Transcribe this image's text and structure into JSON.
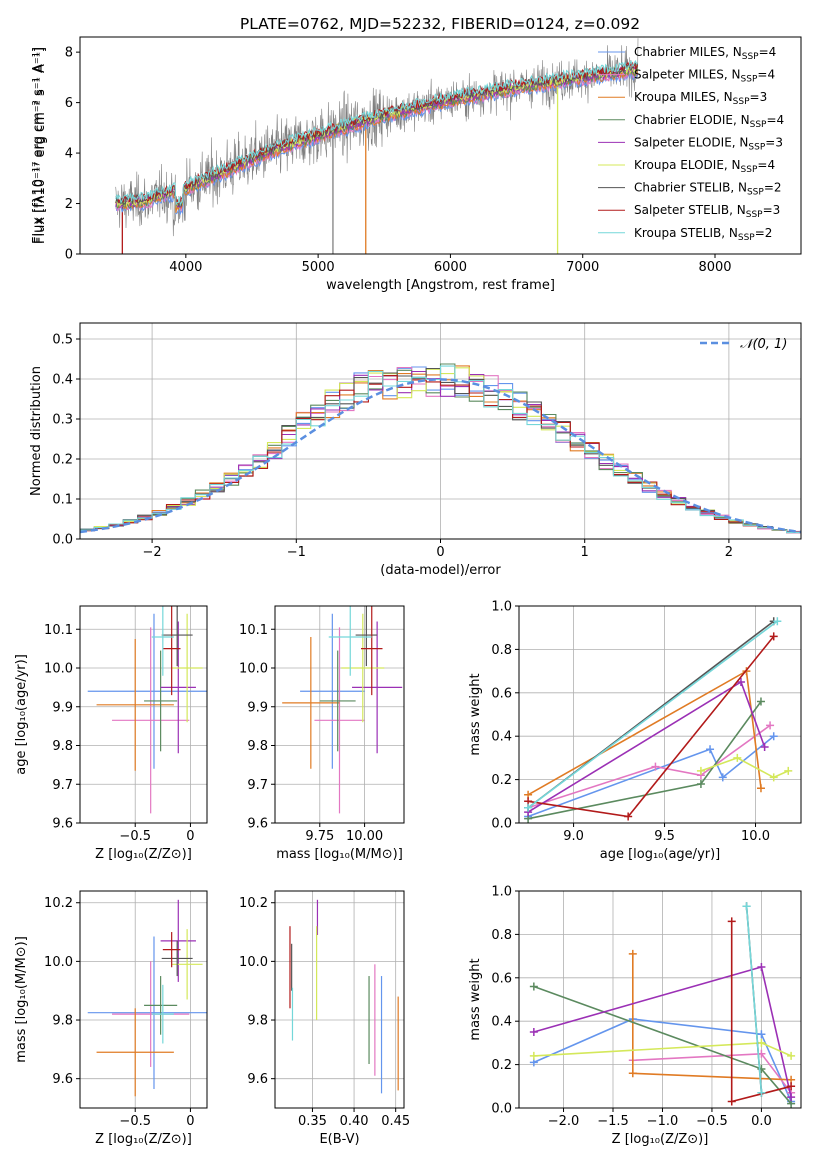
{
  "figure_title": "PLATE=0762, MJD=52232, FIBERID=0124, z=0.092",
  "colors": {
    "Chabrier MILES": "#6495ed",
    "Salpeter MILES": "#e377c2",
    "Kroupa MILES": "#e07b24",
    "Chabrier ELODIE": "#5b8a5f",
    "Salpeter ELODIE": "#9b30b5",
    "Kroupa ELODIE": "#d4e85a",
    "Chabrier STELIB": "#555555",
    "Salpeter STELIB": "#b21a1a",
    "Kroupa STELIB": "#74d7d9",
    "data": "#808080",
    "normal": "#5b8fe0"
  },
  "chart_data": [
    {
      "id": "spectrum",
      "type": "line",
      "title": "PLATE=0762, MJD=52232, FIBERID=0124, z=0.092",
      "xlabel": "wavelength [Angstrom, rest frame]",
      "ylabel": "Flux [fλ10⁻¹⁷ erg cm⁻² s⁻¹ A⁻¹]",
      "xlim": [
        3200,
        8650
      ],
      "ylim": [
        0,
        8.6
      ],
      "xticks": [
        4000,
        5000,
        6000,
        7000,
        8000
      ],
      "yticks": [
        0,
        2,
        4,
        6,
        8
      ],
      "legend_position": "upper right",
      "series": [
        {
          "name": "Chabrier MILES, N_SSP=4",
          "label_main": "Chabrier MILES, N",
          "label_sub": "SSP",
          "label_tail": "=4"
        },
        {
          "name": "Salpeter MILES, N_SSP=4",
          "label_main": "Salpeter MILES, N",
          "label_sub": "SSP",
          "label_tail": "=4"
        },
        {
          "name": "Kroupa MILES, N_SSP=3",
          "label_main": "Kroupa MILES, N",
          "label_sub": "SSP",
          "label_tail": "=3"
        },
        {
          "name": "Chabrier ELODIE, N_SSP=4",
          "label_main": "Chabrier ELODIE, N",
          "label_sub": "SSP",
          "label_tail": "=4"
        },
        {
          "name": "Salpeter ELODIE, N_SSP=3",
          "label_main": "Salpeter ELODIE, N",
          "label_sub": "SSP",
          "label_tail": "=3"
        },
        {
          "name": "Kroupa ELODIE, N_SSP=4",
          "label_main": "Kroupa ELODIE, N",
          "label_sub": "SSP",
          "label_tail": "=4"
        },
        {
          "name": "Chabrier STELIB, N_SSP=2",
          "label_main": "Chabrier STELIB, N",
          "label_sub": "SSP",
          "label_tail": "=2"
        },
        {
          "name": "Salpeter STELIB, N_SSP=3",
          "label_main": "Salpeter STELIB, N",
          "label_sub": "SSP",
          "label_tail": "=3"
        },
        {
          "name": "Kroupa STELIB, N_SSP=2",
          "label_main": "Kroupa STELIB, N",
          "label_sub": "SSP",
          "label_tail": "=2"
        }
      ],
      "continuum": {
        "x": [
          3500,
          3700,
          3800,
          4000,
          4300,
          4600,
          5000,
          5500,
          6000,
          6500,
          7000,
          7400
        ],
        "y": [
          2.0,
          2.1,
          2.3,
          2.6,
          3.3,
          4.0,
          4.7,
          5.5,
          6.1,
          6.6,
          7.0,
          7.3
        ]
      }
    },
    {
      "id": "residuals",
      "type": "line",
      "xlabel": "(data-model)/error",
      "ylabel": "Normed distribution",
      "xlim": [
        -2.5,
        2.5
      ],
      "ylim": [
        0,
        0.54
      ],
      "xticks": [
        -2,
        -1,
        0,
        1,
        2
      ],
      "yticks": [
        0.0,
        0.1,
        0.2,
        0.3,
        0.4,
        0.5
      ],
      "legend_position": "upper right",
      "legend_label": "𝒩(0, 1)",
      "bin_width": 0.1
    },
    {
      "id": "age_vs_Z",
      "type": "scatter",
      "xlabel": "Z [log₁₀(Z/Z⊙)]",
      "ylabel": "age  [log₁₀(age/yr)]",
      "xlim": [
        -1.0,
        0.15
      ],
      "ylim": [
        9.6,
        10.16
      ],
      "xticks": [
        -0.5,
        0.0
      ],
      "yticks": [
        9.6,
        9.7,
        9.8,
        9.9,
        10.0,
        10.1
      ],
      "points": [
        {
          "model": "Chabrier MILES",
          "x": -0.33,
          "xerr": 0.6,
          "y": 9.94,
          "yerr": 0.2
        },
        {
          "model": "Salpeter MILES",
          "x": -0.36,
          "xerr": 0.35,
          "y": 9.865,
          "yerr": 0.24
        },
        {
          "model": "Kroupa MILES",
          "x": -0.5,
          "xerr": 0.35,
          "y": 9.905,
          "yerr": 0.17
        },
        {
          "model": "Chabrier ELODIE",
          "x": -0.27,
          "xerr": 0.15,
          "y": 9.915,
          "yerr": 0.13
        },
        {
          "model": "Salpeter ELODIE",
          "x": -0.11,
          "xerr": 0.16,
          "y": 9.95,
          "yerr": 0.17
        },
        {
          "model": "Kroupa ELODIE",
          "x": -0.03,
          "xerr": 0.14,
          "y": 10.0,
          "yerr": 0.14
        },
        {
          "model": "Chabrier STELIB",
          "x": -0.12,
          "xerr": 0.14,
          "y": 10.085,
          "yerr": 0.08
        },
        {
          "model": "Salpeter STELIB",
          "x": -0.17,
          "xerr": 0.08,
          "y": 10.05,
          "yerr": 0.12
        },
        {
          "model": "Kroupa STELIB",
          "x": -0.25,
          "xerr": 0.1,
          "y": 10.08,
          "yerr": 0.1
        }
      ]
    },
    {
      "id": "age_vs_mass",
      "type": "scatter",
      "xlabel": "mass [log₁₀(M/M⊙)]",
      "ylabel": "",
      "xlim": [
        9.5,
        10.22
      ],
      "ylim": [
        9.6,
        10.16
      ],
      "xticks": [
        9.75,
        10.0
      ],
      "yticks": [
        9.6,
        9.7,
        9.8,
        9.9,
        10.0,
        10.1
      ],
      "points": [
        {
          "model": "Chabrier MILES",
          "x": 9.82,
          "xerr": 0.18,
          "y": 9.94,
          "yerr": 0.2
        },
        {
          "model": "Salpeter MILES",
          "x": 9.86,
          "xerr": 0.14,
          "y": 9.865,
          "yerr": 0.24
        },
        {
          "model": "Kroupa MILES",
          "x": 9.7,
          "xerr": 0.16,
          "y": 9.91,
          "yerr": 0.17
        },
        {
          "model": "Chabrier ELODIE",
          "x": 9.85,
          "xerr": 0.1,
          "y": 9.915,
          "yerr": 0.13
        },
        {
          "model": "Salpeter ELODIE",
          "x": 10.07,
          "xerr": 0.14,
          "y": 9.95,
          "yerr": 0.17
        },
        {
          "model": "Kroupa ELODIE",
          "x": 9.99,
          "xerr": 0.12,
          "y": 10.0,
          "yerr": 0.14
        },
        {
          "model": "Chabrier STELIB",
          "x": 10.01,
          "xerr": 0.06,
          "y": 10.085,
          "yerr": 0.08
        },
        {
          "model": "Salpeter STELIB",
          "x": 10.04,
          "xerr": 0.06,
          "y": 10.05,
          "yerr": 0.12
        },
        {
          "model": "Kroupa STELIB",
          "x": 9.92,
          "xerr": 0.12,
          "y": 10.08,
          "yerr": 0.1
        }
      ]
    },
    {
      "id": "weight_vs_age",
      "type": "line",
      "xlabel": "age  [log₁₀(age/yr)]",
      "ylabel": "mass weight",
      "xlim": [
        8.7,
        10.25
      ],
      "ylim": [
        0,
        1.0
      ],
      "xticks": [
        9.0,
        9.5,
        10.0
      ],
      "yticks": [
        0.0,
        0.2,
        0.4,
        0.6,
        0.8,
        1.0
      ],
      "series": [
        {
          "model": "Chabrier MILES",
          "x": [
            8.75,
            9.75,
            9.82,
            10.1
          ],
          "y": [
            0.03,
            0.34,
            0.21,
            0.4
          ]
        },
        {
          "model": "Salpeter MILES",
          "x": [
            8.75,
            9.45,
            9.7,
            10.08
          ],
          "y": [
            0.07,
            0.26,
            0.22,
            0.45
          ]
        },
        {
          "model": "Kroupa MILES",
          "x": [
            8.75,
            9.95,
            10.03
          ],
          "y": [
            0.13,
            0.7,
            0.16
          ]
        },
        {
          "model": "Chabrier ELODIE",
          "x": [
            8.75,
            9.7,
            10.03
          ],
          "y": [
            0.02,
            0.18,
            0.56
          ]
        },
        {
          "model": "Salpeter ELODIE",
          "x": [
            8.75,
            9.92,
            10.05
          ],
          "y": [
            0.05,
            0.65,
            0.35
          ]
        },
        {
          "model": "Kroupa ELODIE",
          "x": [
            9.7,
            9.9,
            10.1,
            10.18
          ],
          "y": [
            0.24,
            0.3,
            0.21,
            0.24
          ]
        },
        {
          "model": "Chabrier STELIB",
          "x": [
            8.75,
            10.1
          ],
          "y": [
            0.07,
            0.93
          ]
        },
        {
          "model": "Salpeter STELIB",
          "x": [
            8.75,
            9.3,
            10.1
          ],
          "y": [
            0.1,
            0.03,
            0.86
          ]
        },
        {
          "model": "Kroupa STELIB",
          "x": [
            8.75,
            10.12
          ],
          "y": [
            0.07,
            0.93
          ]
        }
      ]
    },
    {
      "id": "mass_vs_Z",
      "type": "scatter",
      "xlabel": "Z [log₁₀(Z/Z⊙)]",
      "ylabel": "mass [log₁₀(M/M⊙)]",
      "xlim": [
        -1.0,
        0.15
      ],
      "ylim": [
        9.5,
        10.24
      ],
      "xticks": [
        -0.5,
        0.0
      ],
      "yticks": [
        9.6,
        9.8,
        10.0,
        10.2
      ],
      "points": [
        {
          "model": "Chabrier MILES",
          "x": -0.33,
          "xerr": 0.6,
          "y": 9.825,
          "yerr": 0.26
        },
        {
          "model": "Salpeter MILES",
          "x": -0.36,
          "xerr": 0.35,
          "y": 9.82,
          "yerr": 0.18
        },
        {
          "model": "Kroupa MILES",
          "x": -0.5,
          "xerr": 0.35,
          "y": 9.69,
          "yerr": 0.15
        },
        {
          "model": "Chabrier ELODIE",
          "x": -0.27,
          "xerr": 0.15,
          "y": 9.85,
          "yerr": 0.1
        },
        {
          "model": "Salpeter ELODIE",
          "x": -0.11,
          "xerr": 0.16,
          "y": 10.07,
          "yerr": 0.14
        },
        {
          "model": "Kroupa ELODIE",
          "x": -0.03,
          "xerr": 0.14,
          "y": 9.99,
          "yerr": 0.12
        },
        {
          "model": "Chabrier STELIB",
          "x": -0.12,
          "xerr": 0.14,
          "y": 10.01,
          "yerr": 0.06
        },
        {
          "model": "Salpeter STELIB",
          "x": -0.17,
          "xerr": 0.08,
          "y": 10.04,
          "yerr": 0.06
        },
        {
          "model": "Kroupa STELIB",
          "x": -0.25,
          "xerr": 0.1,
          "y": 9.82,
          "yerr": 0.1
        }
      ]
    },
    {
      "id": "mass_vs_ebv",
      "type": "scatter",
      "xlabel": "E(B-V)",
      "ylabel": "",
      "xlim": [
        0.305,
        0.46
      ],
      "ylim": [
        9.5,
        10.24
      ],
      "xticks": [
        0.35,
        0.4,
        0.45
      ],
      "yticks": [
        9.6,
        9.8,
        10.0,
        10.2
      ],
      "points": [
        {
          "model": "Chabrier MILES",
          "x": 0.433,
          "xerr": 0,
          "y": 9.75,
          "yerr": 0.2
        },
        {
          "model": "Salpeter MILES",
          "x": 0.425,
          "xerr": 0,
          "y": 9.8,
          "yerr": 0.19
        },
        {
          "model": "Kroupa MILES",
          "x": 0.453,
          "xerr": 0,
          "y": 9.72,
          "yerr": 0.16
        },
        {
          "model": "Chabrier ELODIE",
          "x": 0.418,
          "xerr": 0,
          "y": 9.8,
          "yerr": 0.15
        },
        {
          "model": "Salpeter ELODIE",
          "x": 0.356,
          "xerr": 0,
          "y": 10.15,
          "yerr": 0.06
        },
        {
          "model": "Kroupa ELODIE",
          "x": 0.355,
          "xerr": 0,
          "y": 9.96,
          "yerr": 0.16
        },
        {
          "model": "Chabrier STELIB",
          "x": 0.325,
          "xerr": 0,
          "y": 9.98,
          "yerr": 0.08
        },
        {
          "model": "Salpeter STELIB",
          "x": 0.323,
          "xerr": 0,
          "y": 9.98,
          "yerr": 0.14
        },
        {
          "model": "Kroupa STELIB",
          "x": 0.326,
          "xerr": 0,
          "y": 9.82,
          "yerr": 0.09
        }
      ]
    },
    {
      "id": "weight_vs_Z",
      "type": "line",
      "xlabel": "Z [log₁₀(Z/Z⊙)]",
      "ylabel": "mass weight",
      "xlim": [
        -2.45,
        0.4
      ],
      "ylim": [
        0,
        1.0
      ],
      "xticks": [
        -2.0,
        -1.5,
        -1.0,
        -0.5,
        0.0
      ],
      "yticks": [
        0.0,
        0.2,
        0.4,
        0.6,
        0.8,
        1.0
      ],
      "series": [
        {
          "model": "Chabrier MILES",
          "x": [
            -2.3,
            -1.3,
            0.0,
            0.3
          ],
          "y": [
            0.21,
            0.41,
            0.34,
            0.03
          ]
        },
        {
          "model": "Salpeter MILES",
          "x": [
            -1.3,
            0.0,
            0.3
          ],
          "y": [
            0.22,
            0.25,
            0.07
          ]
        },
        {
          "model": "Kroupa MILES",
          "x": [
            -1.3,
            -1.3,
            0.3
          ],
          "y": [
            0.71,
            0.16,
            0.13
          ]
        },
        {
          "model": "Chabrier ELODIE",
          "x": [
            -2.3,
            0.0,
            0.3
          ],
          "y": [
            0.56,
            0.18,
            0.02
          ]
        },
        {
          "model": "Salpeter ELODIE",
          "x": [
            -2.3,
            0.0,
            0.3
          ],
          "y": [
            0.35,
            0.65,
            0.05
          ]
        },
        {
          "model": "Kroupa ELODIE",
          "x": [
            -2.3,
            0.0,
            0.3
          ],
          "y": [
            0.24,
            0.3,
            0.24
          ]
        },
        {
          "model": "Chabrier STELIB",
          "x": [
            -0.15,
            0.0
          ],
          "y": [
            0.93,
            0.07
          ]
        },
        {
          "model": "Salpeter STELIB",
          "x": [
            -0.3,
            -0.3,
            0.3
          ],
          "y": [
            0.86,
            0.03,
            0.1
          ]
        },
        {
          "model": "Kroupa STELIB",
          "x": [
            -0.15,
            0.0
          ],
          "y": [
            0.93,
            0.07
          ]
        }
      ]
    }
  ]
}
